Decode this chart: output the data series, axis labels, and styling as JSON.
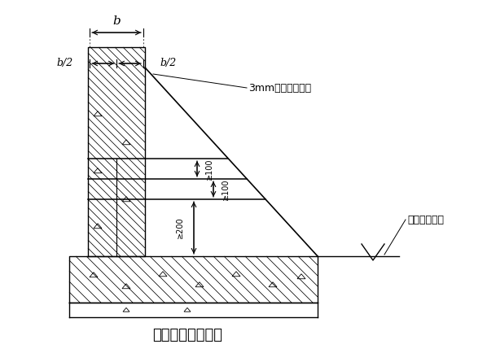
{
  "title": "施工缝处理示意图",
  "label_3mm": "3mm厚钢板止水带",
  "label_base": "基础底板板面",
  "label_b": "b",
  "label_b2_left": "b/2",
  "label_b2_right": "b/2",
  "label_100_top": "≥100",
  "label_100_mid": "≥100",
  "label_200": "≥200",
  "bg_color": "#ffffff",
  "line_color": "#000000",
  "fig_width": 5.98,
  "fig_height": 4.34
}
